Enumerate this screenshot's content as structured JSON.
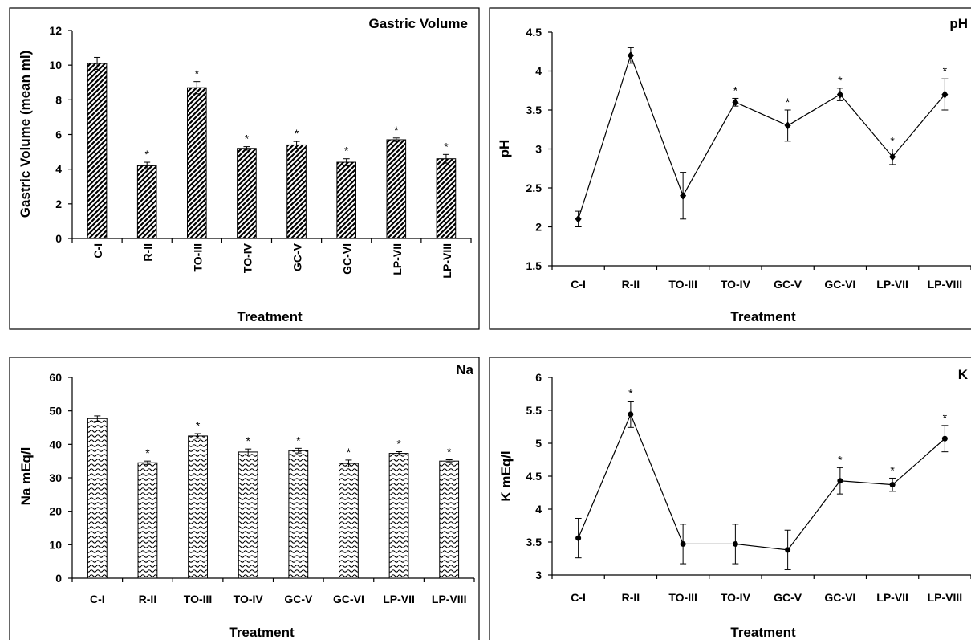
{
  "chart_data": [
    {
      "id": "gastric",
      "type": "bar",
      "title": "Gastric Volume",
      "xlabel": "Treatment",
      "ylabel": "Gastric Volume (mean ml)",
      "categories": [
        "C-I",
        "R-II",
        "TO-III",
        "TO-IV",
        "GC-V",
        "GC-VI",
        "LP-VII",
        "LP-VIII"
      ],
      "values": [
        10.1,
        4.2,
        8.7,
        5.2,
        5.4,
        4.4,
        5.7,
        4.6
      ],
      "errors": [
        0.35,
        0.2,
        0.35,
        0.1,
        0.2,
        0.2,
        0.1,
        0.25
      ],
      "significant": [
        "",
        "*",
        "*",
        "*",
        "*",
        "*",
        "*",
        "*"
      ],
      "ylim": [
        0,
        12
      ],
      "yticks": [
        "0",
        "2",
        "4",
        "6",
        "8",
        "10",
        "12"
      ],
      "bar_pattern": "diagonal-hatch"
    },
    {
      "id": "ph",
      "type": "line",
      "title": "pH",
      "xlabel": "Treatment",
      "ylabel": "pH",
      "categories": [
        "C-I",
        "R-II",
        "TO-III",
        "TO-IV",
        "GC-V",
        "GC-VI",
        "LP-VII",
        "LP-VIII"
      ],
      "values": [
        2.1,
        4.2,
        2.4,
        3.6,
        3.3,
        3.7,
        2.9,
        3.7
      ],
      "errors": [
        0.1,
        0.1,
        0.3,
        0.05,
        0.2,
        0.08,
        0.1,
        0.2
      ],
      "significant": [
        "",
        "",
        "",
        "*",
        "*",
        "*",
        "*",
        "*"
      ],
      "ylim": [
        1.5,
        4.5
      ],
      "yticks": [
        "1.5",
        "2",
        "2.5",
        "3",
        "3.5",
        "4",
        "4.5"
      ],
      "marker": "diamond"
    },
    {
      "id": "na",
      "type": "bar",
      "title": "Na",
      "xlabel": "Treatment",
      "ylabel": "Na mEq/l",
      "categories": [
        "C-I",
        "R-II",
        "TO-III",
        "TO-IV",
        "GC-V",
        "GC-VI",
        "LP-VII",
        "LP-VIII"
      ],
      "values": [
        47.7,
        34.5,
        42.5,
        37.7,
        38.1,
        34.3,
        37.3,
        35.0
      ],
      "errors": [
        0.8,
        0.5,
        0.7,
        0.9,
        0.7,
        1.0,
        0.5,
        0.4
      ],
      "significant": [
        "",
        "*",
        "*",
        "*",
        "*",
        "*",
        "*",
        "*"
      ],
      "ylim": [
        0,
        60
      ],
      "yticks": [
        "0",
        "10",
        "20",
        "30",
        "40",
        "50",
        "60"
      ],
      "bar_pattern": "wave"
    },
    {
      "id": "k",
      "type": "line",
      "title": "K",
      "xlabel": "Treatment",
      "ylabel": "K mEq/l",
      "categories": [
        "C-I",
        "R-II",
        "TO-III",
        "TO-IV",
        "GC-V",
        "GC-VI",
        "LP-VII",
        "LP-VIII"
      ],
      "values": [
        3.56,
        5.44,
        3.47,
        3.47,
        3.38,
        4.43,
        4.37,
        5.07
      ],
      "errors": [
        0.3,
        0.2,
        0.3,
        0.3,
        0.3,
        0.2,
        0.1,
        0.2
      ],
      "significant": [
        "",
        "*",
        "",
        "",
        "",
        "*",
        "*",
        "*"
      ],
      "ylim": [
        3,
        6
      ],
      "yticks": [
        "3",
        "3.5",
        "4",
        "4.5",
        "5",
        "5.5",
        "6"
      ],
      "marker": "circle"
    }
  ]
}
